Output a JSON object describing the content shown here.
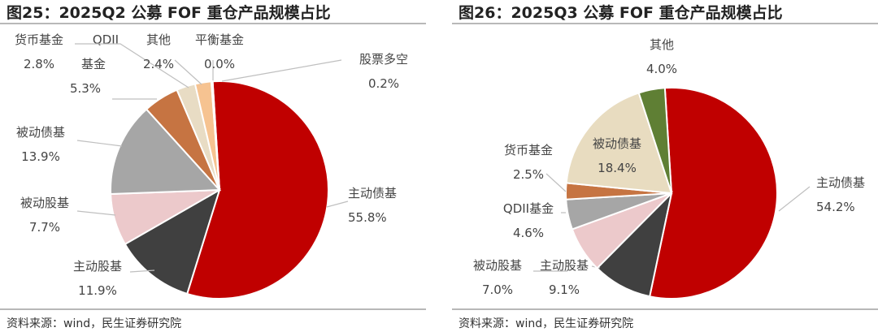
{
  "chart_data": [
    {
      "type": "pie",
      "title": "图25：2025Q2 公募 FOF 重仓产品规模占比",
      "source": "资料来源：wind，民生证券研究院",
      "slices": [
        {
          "name": "主动债基",
          "value": 55.8,
          "label": "55.8%",
          "color": "#c00000"
        },
        {
          "name": "主动股基",
          "value": 11.9,
          "label": "11.9%",
          "color": "#404040"
        },
        {
          "name": "被动股基",
          "value": 7.7,
          "label": "7.7%",
          "color": "#ecc9cb"
        },
        {
          "name": "被动债基",
          "value": 13.9,
          "label": "13.9%",
          "color": "#a6a6a6"
        },
        {
          "name": "QDII基金",
          "value": 5.3,
          "label": "5.3%",
          "color": "#c67442"
        },
        {
          "name": "货币基金",
          "value": 2.8,
          "label": "2.8%",
          "color": "#e8dcc4"
        },
        {
          "name": "其他",
          "value": 2.4,
          "label": "2.4%",
          "color": "#f6c391"
        },
        {
          "name": "平衡基金",
          "value": 0.0,
          "label": "0.0%",
          "color": "#f0e0c8"
        },
        {
          "name": "股票多空",
          "value": 0.2,
          "label": "0.2%",
          "color": "#dddddd"
        }
      ]
    },
    {
      "type": "pie",
      "title": "图26：2025Q3 公募 FOF 重仓产品规模占比",
      "source": "资料来源：wind，民生证券研究院",
      "slices": [
        {
          "name": "主动债基",
          "value": 54.2,
          "label": "54.2%",
          "color": "#c00000"
        },
        {
          "name": "主动股基",
          "value": 9.1,
          "label": "9.1%",
          "color": "#404040"
        },
        {
          "name": "被动股基",
          "value": 7.0,
          "label": "7.0%",
          "color": "#ecc9cb"
        },
        {
          "name": "QDII基金",
          "value": 4.6,
          "label": "4.6%",
          "color": "#a6a6a6"
        },
        {
          "name": "货币基金",
          "value": 2.5,
          "label": "2.5%",
          "color": "#c67442"
        },
        {
          "name": "被动债基",
          "value": 18.4,
          "label": "18.4%",
          "color": "#e8dcc0"
        },
        {
          "name": "其他",
          "value": 4.0,
          "label": "4.0%",
          "color": "#5f7f34"
        }
      ]
    }
  ]
}
